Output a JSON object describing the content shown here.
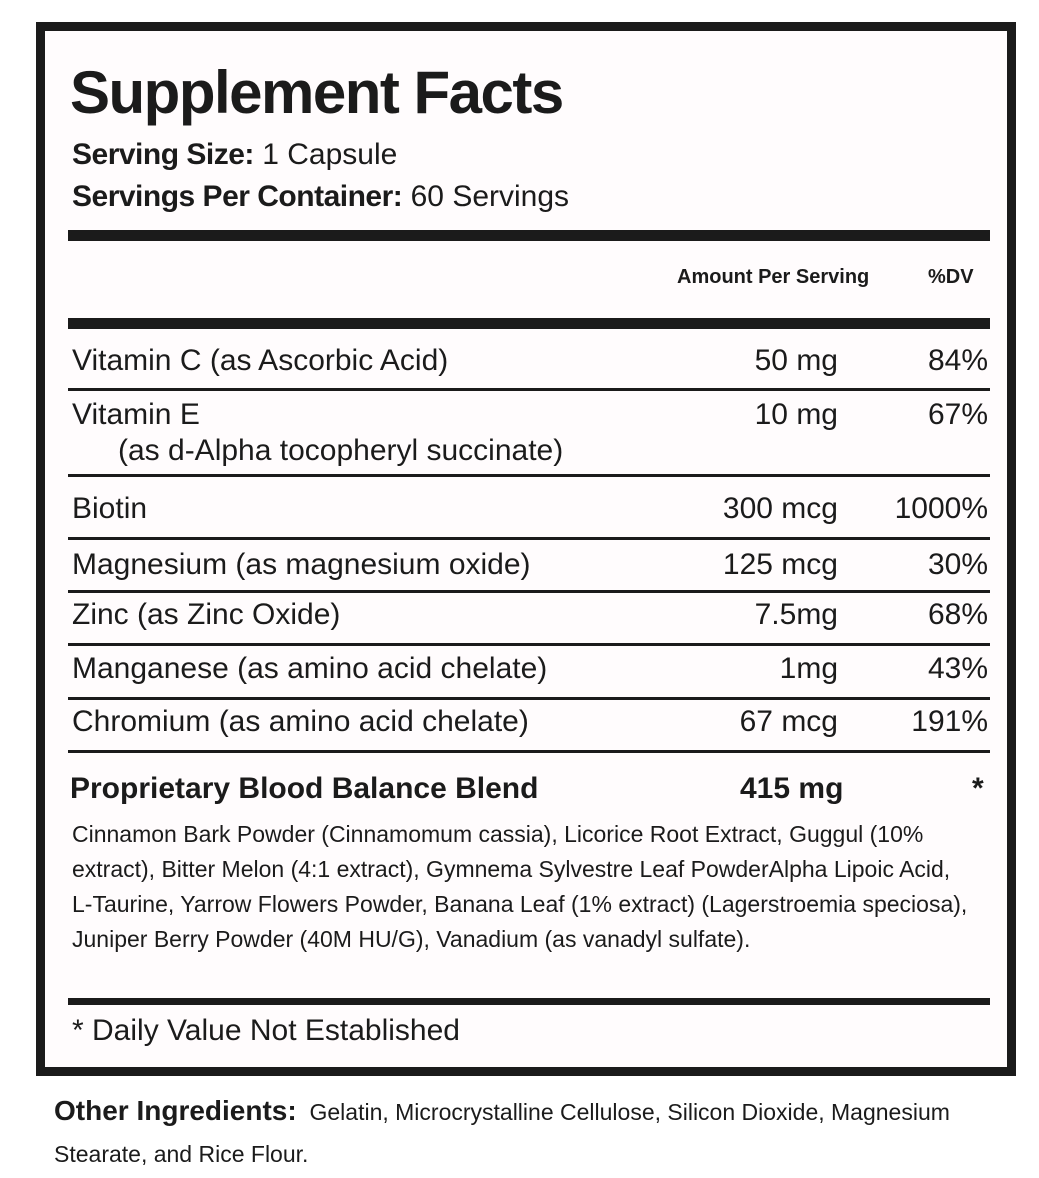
{
  "title": "Supplement Facts",
  "serving_size": {
    "label": "Serving Size:",
    "value": "1 Capsule"
  },
  "servings_per_container": {
    "label": "Servings Per Container:",
    "value": "60 Servings"
  },
  "columns": {
    "amount": "Amount Per Serving",
    "dv": "%DV"
  },
  "rows": [
    {
      "name": "Vitamin C (as Ascorbic Acid)",
      "amount": "50 mg",
      "dv": "84%"
    },
    {
      "name": "Vitamin E",
      "sub": "(as d-Alpha tocopheryl succinate)",
      "amount": "10 mg",
      "dv": "67%"
    },
    {
      "name": "Biotin",
      "amount": "300 mcg",
      "dv": "1000%"
    },
    {
      "name": "Magnesium (as magnesium oxide)",
      "amount": "125 mcg",
      "dv": "30%"
    },
    {
      "name": "Zinc (as Zinc Oxide)",
      "amount": "7.5mg",
      "dv": "68%"
    },
    {
      "name": "Manganese (as amino acid chelate)",
      "amount": "1mg",
      "dv": "43%"
    },
    {
      "name": "Chromium (as amino acid chelate)",
      "amount": "67 mcg",
      "dv": "191%"
    }
  ],
  "blend": {
    "name": "Proprietary Blood Balance Blend",
    "amount": "415 mg",
    "dv": "*",
    "ingredients": "Cinnamon Bark Powder (Cinnamomum cassia), Licorice Root Extract, Guggul (10% extract), Bitter Melon (4:1 extract), Gymnema Sylvestre Leaf PowderAlpha Lipoic Acid, L-Taurine, Yarrow Flowers Powder, Banana Leaf (1% extract) (Lagerstroemia speciosa), Juniper Berry Powder (40M HU/G), Vanadium (as vanadyl sulfate)."
  },
  "footnote": "* Daily Value Not Established",
  "other_ingredients": {
    "label": "Other Ingredients:",
    "value": "Gelatin, Microcrystalline Cellulose, Silicon Dioxide, Magnesium Stearate, and Rice Flour."
  }
}
